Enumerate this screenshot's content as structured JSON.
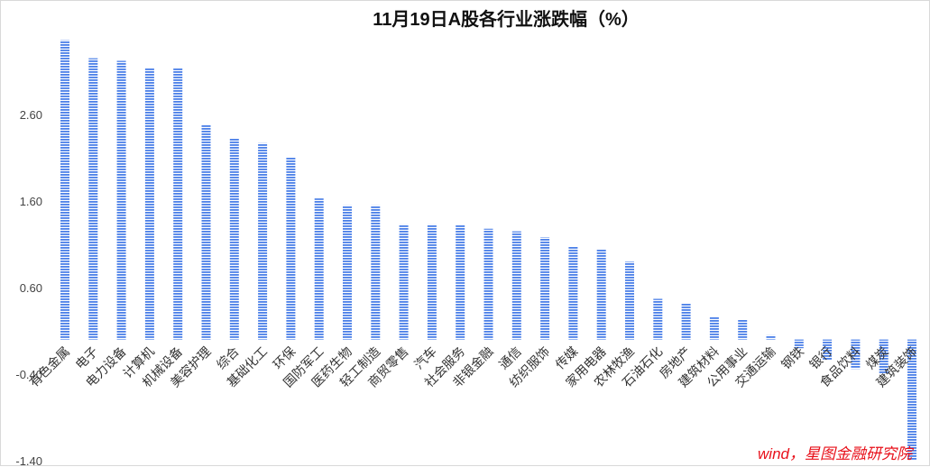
{
  "chart_data": {
    "type": "bar",
    "title": "11月19日A股各行业涨跌幅（%）",
    "xlabel": "",
    "ylabel": "",
    "ylim": [
      -1.4,
      3.6
    ],
    "yticks": [
      "2.60",
      "1.60",
      "0.60",
      "-0.40",
      "-1.40"
    ],
    "ytick_values": [
      2.6,
      1.6,
      0.6,
      -0.4,
      -1.4
    ],
    "grid": false,
    "bar_color": "#4a7fe8",
    "bar_pattern": "horizontal-stripes",
    "categories": [
      "有色金属",
      "电子",
      "电力设备",
      "计算机",
      "机械设备",
      "美容护理",
      "综合",
      "基础化工",
      "环保",
      "国防军工",
      "医药生物",
      "轻工制造",
      "商贸零售",
      "汽车",
      "社会服务",
      "非银金融",
      "通信",
      "纺织服饰",
      "传媒",
      "家用电器",
      "农林牧渔",
      "石油石化",
      "房地产",
      "建筑材料",
      "公用事业",
      "交通运输",
      "钢铁",
      "银行",
      "食品饮料",
      "煤炭",
      "建筑装饰"
    ],
    "values": [
      3.46,
      3.25,
      3.22,
      3.14,
      3.14,
      2.48,
      2.32,
      2.27,
      2.11,
      1.63,
      1.55,
      1.55,
      1.33,
      1.33,
      1.32,
      1.28,
      1.25,
      1.18,
      1.07,
      1.04,
      0.9,
      0.47,
      0.42,
      0.26,
      0.23,
      0.05,
      -0.1,
      -0.24,
      -0.34,
      -0.4,
      -1.4
    ]
  },
  "source_note": "wind，星图金融研究院"
}
